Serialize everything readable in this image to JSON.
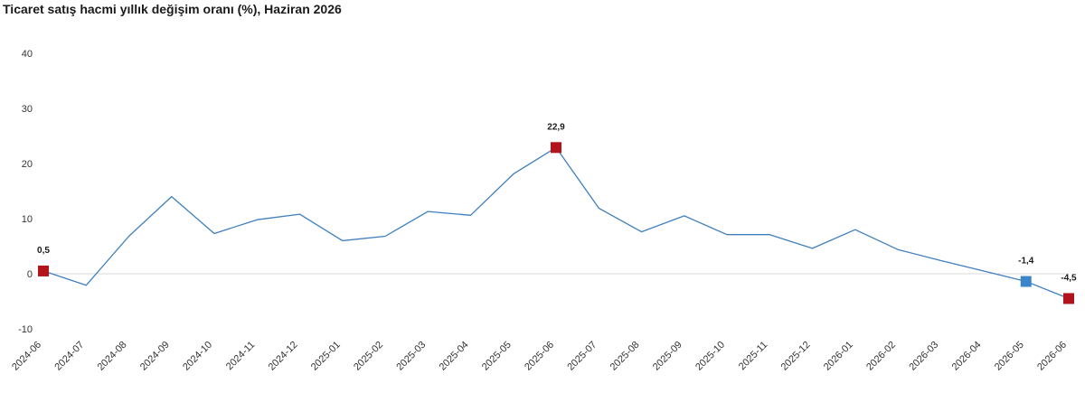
{
  "title": "Ticaret satış hacmi yıllık değişim oranı (%), Haziran 2026",
  "colors": {
    "line": "#3f7fbf",
    "marker_highlight": "#b3141b",
    "marker_current": "#3a86c8",
    "zero_line": "#d9d9d9"
  },
  "chart_data": {
    "type": "line",
    "categories": [
      "2024-06",
      "2024-07",
      "2024-08",
      "2024-09",
      "2024-10",
      "2024-11",
      "2024-12",
      "2025-01",
      "2025-02",
      "2025-03",
      "2025-04",
      "2025-05",
      "2025-06",
      "2025-07",
      "2025-08",
      "2025-09",
      "2025-10",
      "2025-11",
      "2025-12",
      "2026-01",
      "2026-02",
      "2026-03",
      "2026-04",
      "2026-05",
      "2026-06"
    ],
    "series": [
      {
        "values": [
          0.5,
          -2.1,
          6.8,
          14.0,
          7.3,
          9.8,
          10.8,
          6.0,
          6.8,
          11.3,
          10.6,
          18.1,
          22.9,
          11.9,
          7.6,
          10.5,
          7.1,
          7.1,
          4.6,
          8.0,
          4.4,
          2.4,
          0.5,
          -1.4,
          -4.5
        ],
        "markers": [
          {
            "index": 0,
            "label": "0,5",
            "style": "highlight"
          },
          {
            "index": 12,
            "label": "22,9",
            "style": "highlight"
          },
          {
            "index": 23,
            "label": "-1,4",
            "style": "current"
          },
          {
            "index": 24,
            "label": "-4,5",
            "style": "highlight"
          }
        ]
      }
    ],
    "ylim": [
      -10,
      40
    ],
    "yticks": [
      {
        "value": 40,
        "label": "40"
      },
      {
        "value": 30,
        "label": "30"
      },
      {
        "value": 20,
        "label": "20"
      },
      {
        "value": 10,
        "label": "10"
      },
      {
        "value": 0,
        "label": "0"
      },
      {
        "value": -10,
        "label": "-10"
      }
    ],
    "grid": false,
    "zero_line": true,
    "xlabel": "",
    "ylabel": ""
  }
}
